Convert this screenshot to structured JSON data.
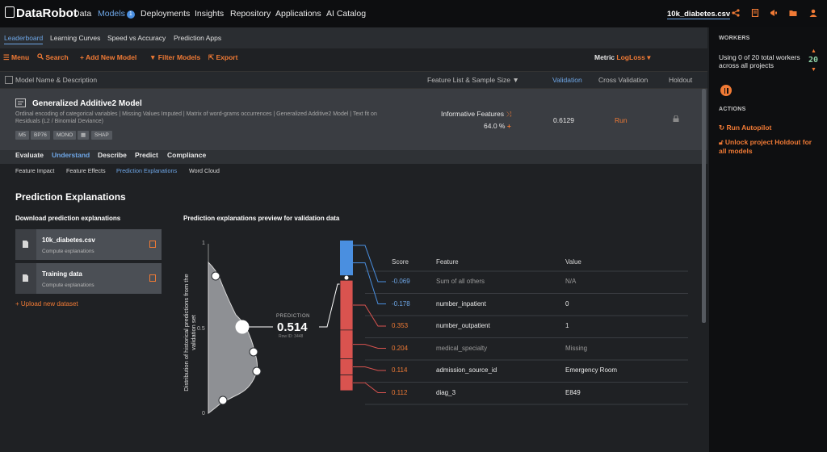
{
  "header": {
    "logo_text": "DataRobot",
    "nav": [
      {
        "label": "Data"
      },
      {
        "label": "Models",
        "badge": "1"
      },
      {
        "label": "Deployments"
      },
      {
        "label": "Insights"
      },
      {
        "label": "Repository"
      },
      {
        "label": "Applications"
      },
      {
        "label": "AI Catalog"
      }
    ],
    "project_name": "10k_diabetes.csv"
  },
  "subnav": [
    "Leaderboard",
    "Learning Curves",
    "Speed vs Accuracy",
    "Prediction Apps"
  ],
  "toolbar": {
    "menu": "Menu",
    "search": "Search",
    "add_model": "Add New Model",
    "filter": "Filter Models",
    "export": "Export",
    "metric_label": "Metric",
    "metric_value": "LogLoss"
  },
  "table_header": {
    "name": "Model Name & Description",
    "feature_list": "Feature List & Sample Size",
    "validation": "Validation",
    "cross_validation": "Cross Validation",
    "holdout": "Holdout"
  },
  "model": {
    "title": "Generalized Additive2 Model",
    "description": "Ordinal encoding of categorical variables | Missing Values Imputed | Matrix of word-grams occurrences | Generalized Additive2 Model | Text fit on Residuals (L2 / Binomial Deviance)",
    "chips": [
      "M5",
      "BP76",
      "MONO",
      "SHAP"
    ],
    "feature_list": "Informative Features",
    "sample_pct": "64.0 %",
    "validation": "0.6129",
    "cross_validation": "Run"
  },
  "model_tabs": [
    "Evaluate",
    "Understand",
    "Describe",
    "Predict",
    "Compliance"
  ],
  "understand_tabs": [
    "Feature Impact",
    "Feature Effects",
    "Prediction Explanations",
    "Word Cloud"
  ],
  "section_title": "Prediction Explanations",
  "download": {
    "title": "Download prediction explanations",
    "files": [
      {
        "name": "10k_diabetes.csv",
        "sub": "Compute explanations"
      },
      {
        "name": "Training data",
        "sub": "Compute explanations"
      }
    ],
    "upload": "Upload new dataset"
  },
  "preview": {
    "title": "Prediction explanations preview for validation data",
    "y_axis_title": "Distribution of historical predictions from the validation set",
    "y_ticks": [
      "1",
      "0.5",
      "0"
    ],
    "prediction_label": "PREDICTION",
    "prediction_value": "0.514",
    "prediction_value_num": 0.514,
    "row_id": "Row ID: 3448",
    "columns": {
      "score": "Score",
      "feature": "Feature",
      "value": "Value"
    },
    "rows": [
      {
        "score": "-0.069",
        "score_num": -0.069,
        "feature": "Sum of all others",
        "value": "N/A",
        "muted": true
      },
      {
        "score": "-0.178",
        "score_num": -0.178,
        "feature": "number_inpatient",
        "value": "0",
        "muted": false
      },
      {
        "score": "0.353",
        "score_num": 0.353,
        "feature": "number_outpatient",
        "value": "1",
        "muted": false
      },
      {
        "score": "0.204",
        "score_num": 0.204,
        "feature": "medical_specialty",
        "value": "Missing",
        "muted": true
      },
      {
        "score": "0.114",
        "score_num": 0.114,
        "feature": "admission_source_id",
        "value": "Emergency Room",
        "muted": false
      },
      {
        "score": "0.112",
        "score_num": 0.112,
        "feature": "diag_3",
        "value": "E849",
        "muted": false
      }
    ]
  },
  "sidebar": {
    "workers_title": "WORKERS",
    "workers_text": "Using 0 of 20 total workers across all projects",
    "worker_count": "20",
    "actions_title": "ACTIONS",
    "run_autopilot": "Run Autopilot",
    "unlock_holdout": "Unlock project Holdout for all models"
  },
  "colors": {
    "accent": "#f07a35",
    "link": "#6ea6e6",
    "positive": "#d9534f",
    "negative": "#4a8fe0"
  }
}
